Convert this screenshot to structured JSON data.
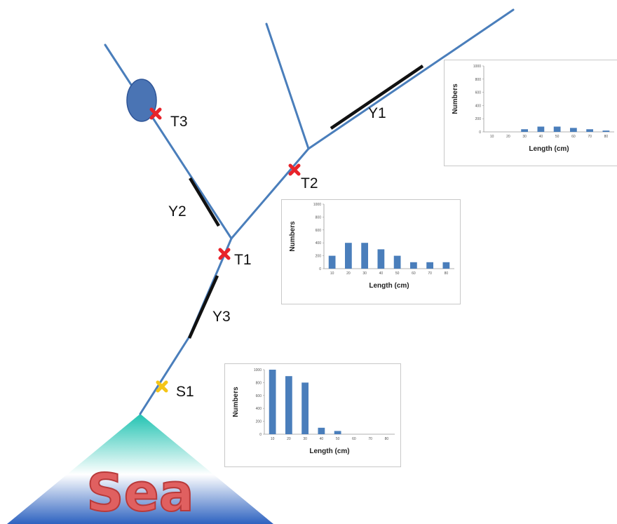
{
  "sea_label": "Sea",
  "points": [
    {
      "id": "T3",
      "label": "T3",
      "color": "#e8232a",
      "marker": "cross"
    },
    {
      "id": "T2",
      "label": "T2",
      "color": "#e8232a",
      "marker": "cross"
    },
    {
      "id": "T1",
      "label": "T1",
      "color": "#e8232a",
      "marker": "cross"
    },
    {
      "id": "S1",
      "label": "S1",
      "color": "#f5c518",
      "marker": "cross"
    }
  ],
  "segments": [
    {
      "id": "Y1",
      "label": "Y1"
    },
    {
      "id": "Y2",
      "label": "Y2"
    },
    {
      "id": "Y3",
      "label": "Y3"
    }
  ],
  "colors": {
    "river": "#4a7ebb",
    "segment": "#111111",
    "bar": "#4a7ebb",
    "lake": "#4a74b4",
    "sea_top": "#22c3b2",
    "sea_bottom": "#2d62c0"
  },
  "chart_data": [
    {
      "id": "chart-y1",
      "type": "bar",
      "categories": [
        "10",
        "20",
        "30",
        "40",
        "50",
        "60",
        "70",
        "80"
      ],
      "values": [
        0,
        0,
        40,
        80,
        80,
        60,
        40,
        20
      ],
      "xlabel": "Length (cm)",
      "ylabel": "Numbers",
      "ylim": [
        0,
        1000
      ],
      "yticks": [
        "0",
        "200",
        "400",
        "600",
        "800",
        "1000"
      ]
    },
    {
      "id": "chart-y2",
      "type": "bar",
      "categories": [
        "10",
        "20",
        "30",
        "40",
        "50",
        "60",
        "70",
        "80"
      ],
      "values": [
        200,
        400,
        400,
        300,
        200,
        100,
        100,
        100
      ],
      "xlabel": "Length (cm)",
      "ylabel": "Numbers",
      "ylim": [
        0,
        1000
      ],
      "yticks": [
        "0",
        "200",
        "400",
        "600",
        "800",
        "1000"
      ]
    },
    {
      "id": "chart-y3",
      "type": "bar",
      "categories": [
        "10",
        "20",
        "30",
        "40",
        "50",
        "60",
        "70",
        "80"
      ],
      "values": [
        1000,
        900,
        800,
        100,
        50,
        0,
        0,
        0
      ],
      "xlabel": "Length (cm)",
      "ylabel": "Numbers",
      "ylim": [
        0,
        1000
      ],
      "yticks": [
        "0",
        "200",
        "400",
        "600",
        "800",
        "1000"
      ]
    }
  ]
}
